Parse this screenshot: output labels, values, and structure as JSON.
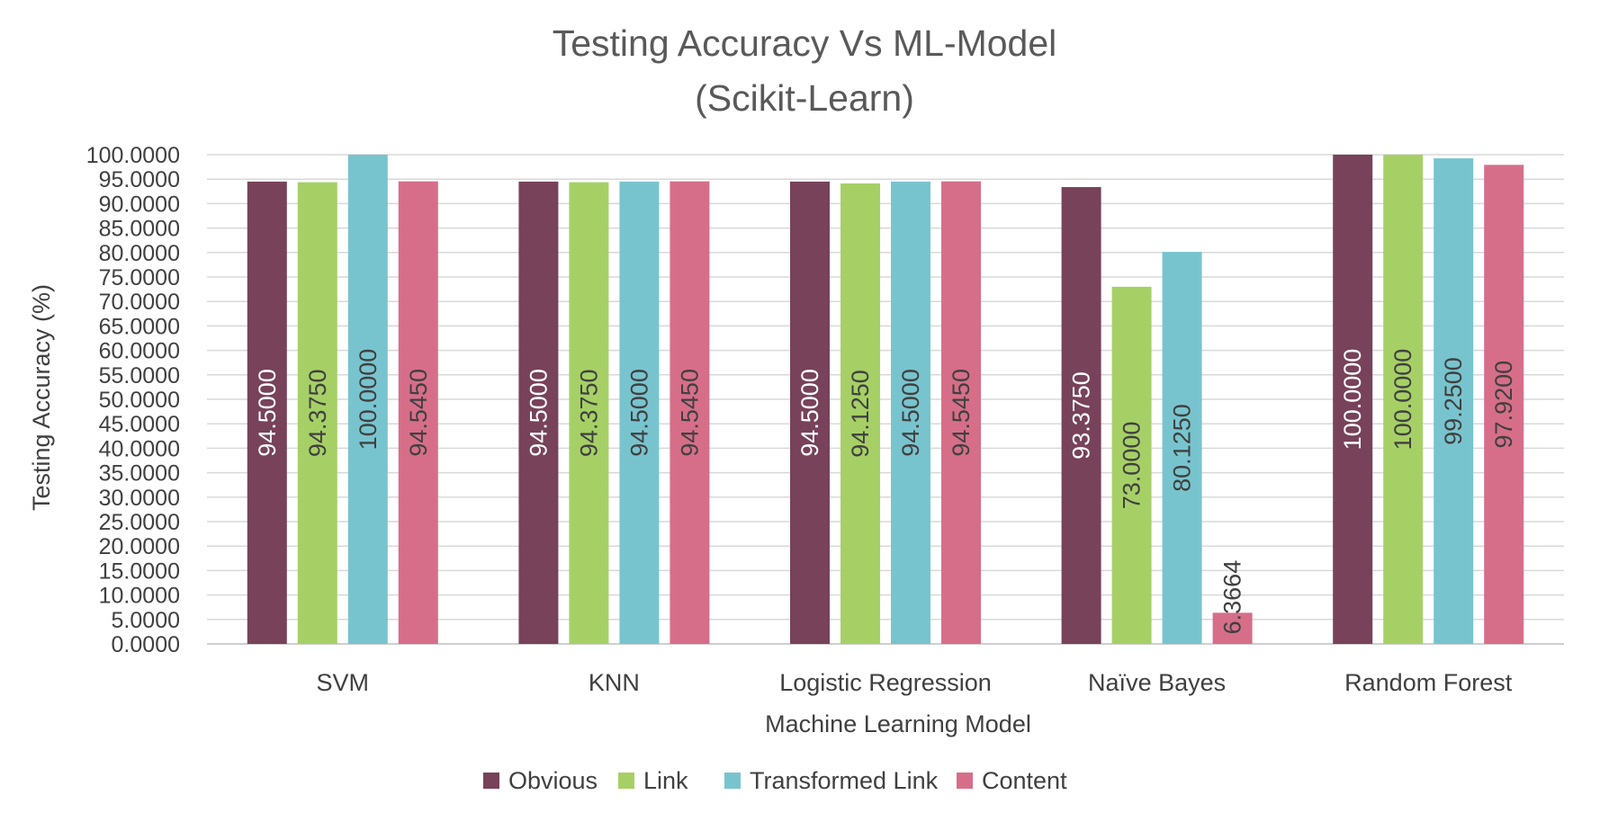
{
  "chart_data": {
    "type": "bar",
    "title": "Testing Accuracy Vs ML-Model",
    "subtitle": "(Scikit-Learn)",
    "xlabel": "Machine Learning Model",
    "ylabel": "Testing Accuracy (%)",
    "ylim": [
      0,
      100
    ],
    "y_tick_step": 5,
    "y_tick_labels": [
      "0.0000",
      "5.0000",
      "10.0000",
      "15.0000",
      "20.0000",
      "25.0000",
      "30.0000",
      "35.0000",
      "40.0000",
      "45.0000",
      "50.0000",
      "55.0000",
      "60.0000",
      "65.0000",
      "70.0000",
      "75.0000",
      "80.0000",
      "85.0000",
      "90.0000",
      "95.0000",
      "100.0000"
    ],
    "grid": true,
    "legend_position": "bottom",
    "categories": [
      "SVM",
      "KNN",
      "Logistic Regression",
      "Naïve Bayes",
      "Random Forest"
    ],
    "series": [
      {
        "name": "Obvious",
        "color": "#77425a",
        "label_color": "#ffffff",
        "values": [
          94.5,
          94.5,
          94.5,
          93.375,
          100.0
        ],
        "labels": [
          "94.5000",
          "94.5000",
          "94.5000",
          "93.3750",
          "100.0000"
        ]
      },
      {
        "name": "Link",
        "color": "#a6d066",
        "label_color": "#404040",
        "values": [
          94.375,
          94.375,
          94.125,
          73.0,
          100.0
        ],
        "labels": [
          "94.3750",
          "94.3750",
          "94.1250",
          "73.0000",
          "100.0000"
        ]
      },
      {
        "name": "Transformed Link",
        "color": "#78c4ce",
        "label_color": "#404040",
        "values": [
          100.0,
          94.5,
          94.5,
          80.125,
          99.25
        ],
        "labels": [
          "100.0000",
          "94.5000",
          "94.5000",
          "80.1250",
          "99.2500"
        ]
      },
      {
        "name": "Content",
        "color": "#d66e8a",
        "label_color": "#404040",
        "values": [
          94.545,
          94.545,
          94.545,
          6.3664,
          97.92
        ],
        "labels": [
          "94.5450",
          "94.5450",
          "94.5450",
          "6.3664",
          "97.9200"
        ]
      }
    ]
  }
}
